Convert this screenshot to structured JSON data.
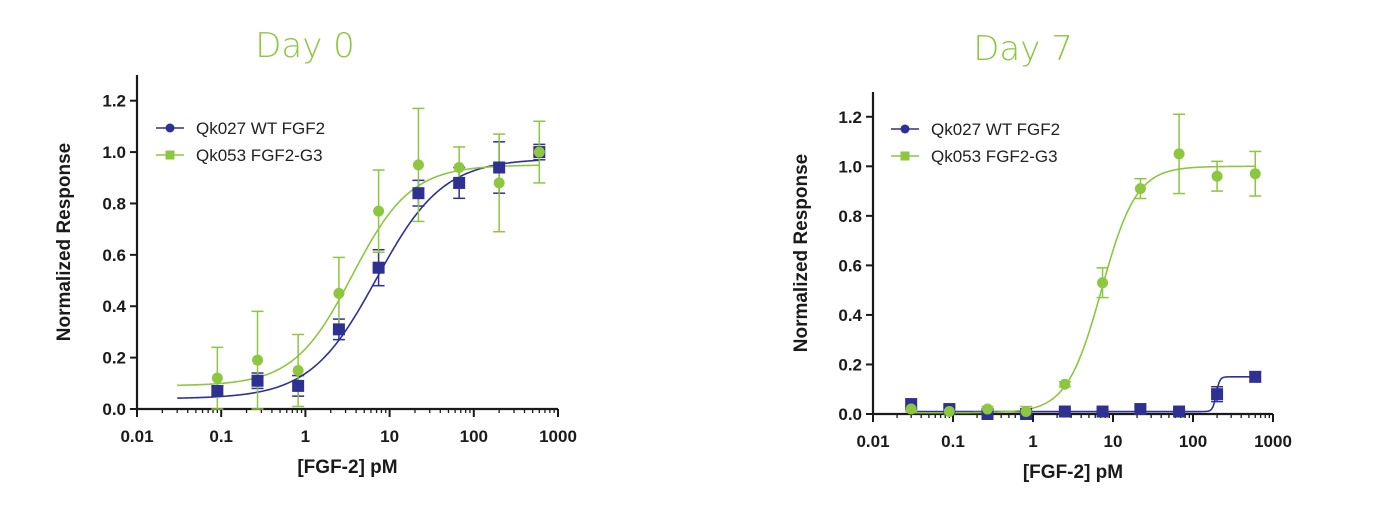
{
  "colors": {
    "series1": "#2e3192",
    "series2": "#8dc63f",
    "axis": "#1a1a1a",
    "title": "#8dc63f"
  },
  "chart_data": [
    {
      "type": "scatter",
      "title": "Day 0",
      "xlabel": "[FGF-2] pM",
      "ylabel": "Normalized Response",
      "xscale": "log",
      "xlim": [
        0.01,
        1000
      ],
      "ylim": [
        0,
        1.3
      ],
      "xticks": [
        0.01,
        0.1,
        1,
        10,
        100,
        1000
      ],
      "xtick_labels": [
        "0.01",
        "0.1",
        "1",
        "10",
        "100",
        "1000"
      ],
      "yticks": [
        0,
        0.2,
        0.4,
        0.6,
        0.8,
        1.0,
        1.2
      ],
      "ytick_labels": [
        "0.0",
        "0.2",
        "0.4",
        "0.6",
        "0.8",
        "1.0",
        "1.2"
      ],
      "legend_position": "top-left",
      "series": [
        {
          "name": "Qk027 WT FGF2",
          "color": "#2e3192",
          "marker": "square",
          "legend_marker": "circle",
          "x": [
            0.09,
            0.27,
            0.82,
            2.5,
            7.4,
            22,
            67,
            200,
            600
          ],
          "y": [
            0.07,
            0.11,
            0.09,
            0.31,
            0.55,
            0.84,
            0.88,
            0.94,
            1.0
          ],
          "err": [
            0.02,
            0.03,
            0.04,
            0.04,
            0.07,
            0.05,
            0.06,
            0.1,
            0.03
          ],
          "fit": {
            "bottom": 0.04,
            "top": 0.975,
            "ec50": 7.0,
            "hill": 1.1,
            "xmin": 0.03,
            "xmax": 600
          }
        },
        {
          "name": "Qk053 FGF2-G3",
          "color": "#8dc63f",
          "marker": "circle",
          "legend_marker": "square",
          "x": [
            0.09,
            0.27,
            0.82,
            2.5,
            7.4,
            22,
            67,
            200,
            600
          ],
          "y": [
            0.12,
            0.19,
            0.15,
            0.45,
            0.77,
            0.95,
            0.94,
            0.88,
            1.0
          ],
          "err": [
            0.12,
            0.19,
            0.14,
            0.14,
            0.16,
            0.22,
            0.08,
            0.19,
            0.12
          ],
          "fit": {
            "bottom": 0.09,
            "top": 0.95,
            "ec50": 3.6,
            "hill": 1.25,
            "xmin": 0.03,
            "xmax": 600
          }
        }
      ]
    },
    {
      "type": "scatter",
      "title": "Day 7",
      "xlabel": "[FGF-2] pM",
      "ylabel": "Normalized Response",
      "xscale": "log",
      "xlim": [
        0.01,
        1000
      ],
      "ylim": [
        0,
        1.3
      ],
      "xticks": [
        0.01,
        0.1,
        1,
        10,
        100,
        1000
      ],
      "xtick_labels": [
        "0.01",
        "0.1",
        "1",
        "10",
        "100",
        "1000"
      ],
      "yticks": [
        0,
        0.2,
        0.4,
        0.6,
        0.8,
        1.0,
        1.2
      ],
      "ytick_labels": [
        "0.0",
        "0.2",
        "0.4",
        "0.6",
        "0.8",
        "1.0",
        "1.2"
      ],
      "legend_position": "top-left",
      "series": [
        {
          "name": "Qk027 WT FGF2",
          "color": "#2e3192",
          "marker": "square",
          "legend_marker": "circle",
          "x": [
            0.03,
            0.09,
            0.27,
            0.82,
            2.5,
            7.4,
            22,
            67,
            200,
            600
          ],
          "y": [
            0.04,
            0.02,
            0.0,
            0.0,
            0.01,
            0.01,
            0.02,
            0.01,
            0.08,
            0.15
          ],
          "err": [
            0.02,
            0.01,
            0.01,
            0.01,
            0.01,
            0.01,
            0.01,
            0.01,
            0.03,
            0.02
          ],
          "fit": {
            "bottom": 0.01,
            "top": 0.15,
            "ec50": 195,
            "hill": 20,
            "xmin": 0.03,
            "xmax": 600
          }
        },
        {
          "name": "Qk053 FGF2-G3",
          "color": "#8dc63f",
          "marker": "circle",
          "legend_marker": "square",
          "x": [
            0.03,
            0.09,
            0.27,
            0.82,
            2.5,
            7.4,
            22,
            67,
            200,
            600
          ],
          "y": [
            0.02,
            0.01,
            0.02,
            0.01,
            0.12,
            0.53,
            0.91,
            1.05,
            0.96,
            0.97
          ],
          "err": [
            0.01,
            0.01,
            0.01,
            0.02,
            0.01,
            0.06,
            0.04,
            0.16,
            0.06,
            0.09
          ],
          "fit": {
            "bottom": 0.005,
            "top": 1.0,
            "ec50": 7.2,
            "hill": 2.0,
            "xmin": 0.03,
            "xmax": 600
          }
        }
      ]
    }
  ]
}
